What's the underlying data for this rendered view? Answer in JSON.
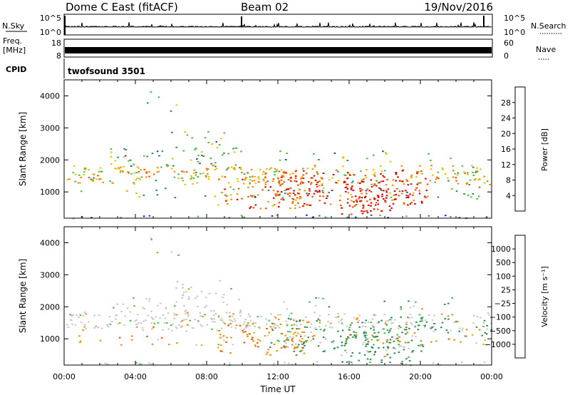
{
  "header": {
    "title": "Dome C East (fitACF)",
    "beam": "Beam 02",
    "date": "19/Nov/2016"
  },
  "top_panels": {
    "nsky_label": "N.Sky",
    "nsky_ticks": [
      "10^5",
      "10^0"
    ],
    "nsearch_label": "N.Search",
    "freq_label_1": "Freq.",
    "freq_label_2": "[MHz]",
    "freq_ticks": [
      "18",
      "8"
    ],
    "nave_ticks": [
      "60",
      "0"
    ],
    "nave_label": "Nave",
    "cpid_label": "CPID",
    "cpid_value": "twofsound 3501"
  },
  "x_axis": {
    "label": "Time UT",
    "ticks": [
      "00:00",
      "04:00",
      "08:00",
      "12:00",
      "16:00",
      "20:00",
      "00:00"
    ]
  },
  "colors": {
    "power_scale": [
      "#1a1aff",
      "#1f4fa8",
      "#2f8a5a",
      "#44c044",
      "#e8c000",
      "#f08a00",
      "#f05000",
      "#e00000"
    ],
    "velocity_scale": [
      "#e00000",
      "#f05000",
      "#f08a00",
      "#e8b000",
      "#c8c8c8",
      "#44c044",
      "#2f8a5a",
      "#1f4fa8",
      "#1a1aff"
    ]
  },
  "chart_data": [
    {
      "type": "heatmap",
      "name": "power",
      "xlabel": "",
      "ylabel": "Slant Range [km]",
      "ylim": [
        180,
        4500
      ],
      "yticks": [
        "1000",
        "2000",
        "3000",
        "4000"
      ],
      "colorbar_label": "Power [dB]",
      "colorbar_ticks": [
        "28",
        "24",
        "20",
        "16",
        "12",
        "8",
        "4"
      ],
      "zlim": [
        0,
        32
      ],
      "xlim": [
        0,
        24
      ]
    },
    {
      "type": "heatmap",
      "name": "velocity",
      "xlabel": "Time UT",
      "ylabel": "Slant Range [km]",
      "ylim": [
        180,
        4500
      ],
      "yticks": [
        "1000",
        "2000",
        "3000",
        "4000"
      ],
      "colorbar_label": "Velocity [m s⁻¹]",
      "colorbar_ticks": [
        "1000",
        "500",
        "100",
        "25",
        "−25",
        "−100",
        "−500",
        "−1000"
      ],
      "zlim": [
        -1000,
        1000
      ],
      "xlim": [
        0,
        24
      ]
    }
  ]
}
